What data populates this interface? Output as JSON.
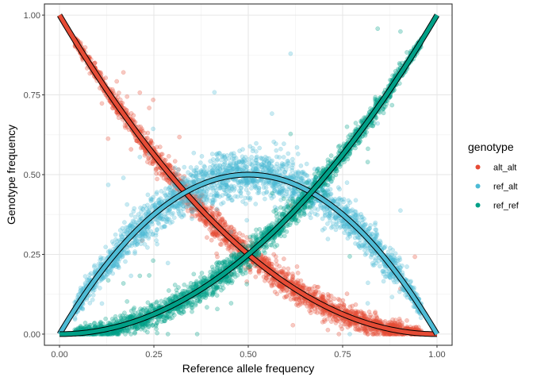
{
  "chart_data": {
    "type": "scatter",
    "xlabel": "Reference allele frequency",
    "ylabel": "Genotype frequency",
    "xlim": [
      -0.04,
      1.04
    ],
    "ylim": [
      -0.035,
      1.035
    ],
    "x_ticks": [
      0.0,
      0.25,
      0.5,
      0.75,
      1.0
    ],
    "y_ticks": [
      0.0,
      0.25,
      0.5,
      0.75,
      1.0
    ],
    "x_tick_labels": [
      "0.00",
      "0.25",
      "0.50",
      "0.75",
      "1.00"
    ],
    "y_tick_labels": [
      "0.00",
      "0.25",
      "0.50",
      "0.75",
      "1.00"
    ],
    "grid": true,
    "legend": {
      "title": "genotype",
      "position": "right",
      "entries": [
        {
          "label": "alt_alt",
          "color": "#E64B35"
        },
        {
          "label": "ref_alt",
          "color": "#4DBBD5"
        },
        {
          "label": "ref_ref",
          "color": "#00A087"
        }
      ]
    },
    "series": [
      {
        "name": "alt_alt",
        "color": "#E64B35",
        "expected": "(1-p)^2",
        "spread": 0.05
      },
      {
        "name": "ref_alt",
        "color": "#4DBBD5",
        "expected": "2p(1-p)",
        "spread": 0.08
      },
      {
        "name": "ref_ref",
        "color": "#00A087",
        "expected": "p^2",
        "spread": 0.05
      }
    ],
    "reference_curves": [
      "(1-p)^2",
      "2p(1-p)",
      "p^2"
    ],
    "point_alpha": 0.3
  }
}
